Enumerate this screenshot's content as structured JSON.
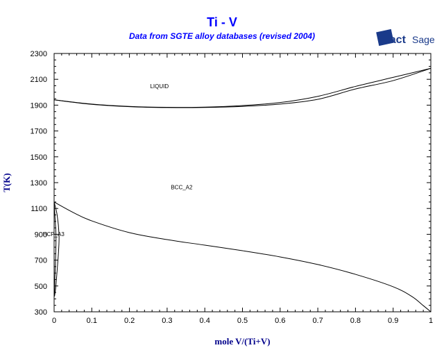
{
  "chart_data": {
    "type": "line",
    "title": "Ti - V",
    "subtitle": "Data from SGTE alloy databases (revised 2004)",
    "logo": "FactSage",
    "xlabel": "mole V/(Ti+V)",
    "ylabel": "T(K)",
    "xlim": [
      0,
      1
    ],
    "ylim": [
      300,
      2300
    ],
    "xticks": [
      "0",
      "0.1",
      "0.2",
      "0.3",
      "0.4",
      "0.5",
      "0.6",
      "0.7",
      "0.8",
      "0.9",
      "1"
    ],
    "yticks": [
      "300",
      "500",
      "700",
      "900",
      "1100",
      "1300",
      "1500",
      "1700",
      "1900",
      "2100",
      "2300"
    ],
    "series": [
      {
        "name": "liquidus",
        "x": [
          0,
          0.1,
          0.2,
          0.3,
          0.4,
          0.5,
          0.6,
          0.7,
          0.8,
          0.9,
          1.0
        ],
        "y": [
          1941,
          1908,
          1890,
          1883,
          1885,
          1897,
          1920,
          1968,
          2045,
          2115,
          2185
        ]
      },
      {
        "name": "solidus",
        "x": [
          0,
          0.1,
          0.2,
          0.3,
          0.4,
          0.5,
          0.6,
          0.7,
          0.8,
          0.9,
          1.0
        ],
        "y": [
          1941,
          1906,
          1888,
          1881,
          1882,
          1890,
          1908,
          1945,
          2025,
          2090,
          2185
        ]
      },
      {
        "name": "bcc-boundary",
        "x": [
          0,
          0.05,
          0.1,
          0.2,
          0.3,
          0.4,
          0.5,
          0.6,
          0.7,
          0.8,
          0.9,
          0.95,
          0.98,
          1.0
        ],
        "y": [
          1150,
          1070,
          1004,
          913,
          859,
          816,
          773,
          725,
          666,
          590,
          494,
          418,
          348,
          300
        ]
      },
      {
        "name": "hcp-bcc-boundary",
        "x": [
          0,
          0.008,
          0.013,
          0.012,
          0.008,
          0.004,
          0.001
        ],
        "y": [
          1150,
          1050,
          900,
          780,
          620,
          480,
          420
        ]
      },
      {
        "name": "hcp-boundary",
        "x": [
          0,
          0.003,
          0.005,
          0.004,
          0.002,
          0.001
        ],
        "y": [
          1150,
          1000,
          880,
          720,
          560,
          420
        ]
      }
    ],
    "annotations": [
      {
        "text": "LIQUID",
        "x": 0.255,
        "y": 2030
      },
      {
        "text": "BCC_A2",
        "x": 0.31,
        "y": 1250
      },
      {
        "text": "HCP_A3",
        "x": -0.03,
        "y": 885
      }
    ]
  }
}
